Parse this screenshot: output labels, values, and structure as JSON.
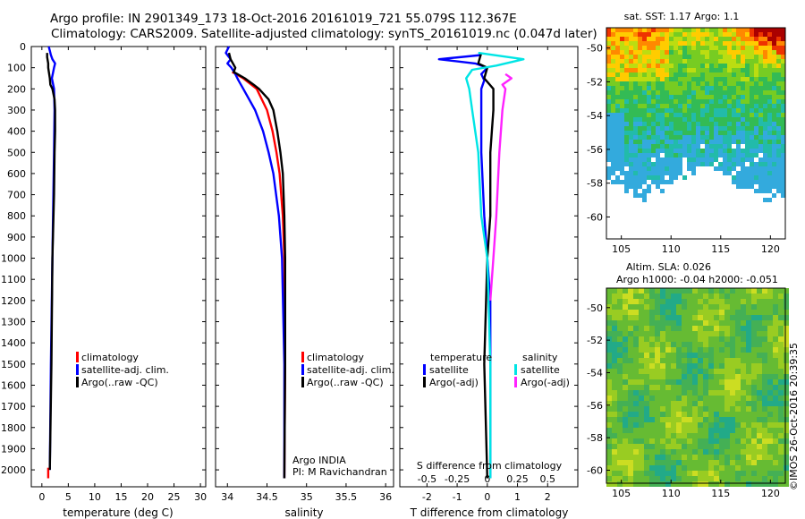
{
  "header": {
    "line1": "Argo profile: IN 2901349_173 18-Oct-2016 20161019_721 55.079S 112.367E",
    "line2": "Climatology: CARS2009. Satellite-adjusted climatology: synTS_20161019.nc (0.047d later)"
  },
  "watermark": "©IMOS 26-Oct-2016 20:39:35",
  "colors": {
    "climatology": "#ff0000",
    "satellite": "#0000ff",
    "argo": "#000000",
    "cyan": "#00e5e5",
    "magenta": "#ff22ff"
  },
  "chart_data": [
    {
      "id": "temperature",
      "type": "line",
      "xlabel": "temperature (deg C)",
      "ylabel": "",
      "xlim": [
        -2,
        31
      ],
      "ylim": [
        2080,
        0
      ],
      "xticks": [
        0,
        5,
        10,
        15,
        20,
        25,
        30
      ],
      "xtick_labels": [
        "0",
        "5",
        "10",
        "15",
        "20",
        "25",
        "30"
      ],
      "yticks": [
        0,
        100,
        200,
        300,
        400,
        500,
        600,
        700,
        800,
        900,
        1000,
        1100,
        1200,
        1300,
        1400,
        1500,
        1600,
        1700,
        1800,
        1900,
        2000
      ],
      "legend": [
        "climatology",
        "satellite-adj. clim.",
        "Argo(..raw -QC)"
      ],
      "series": [
        {
          "name": "climatology",
          "color": "#ff0000",
          "depth": [
            1990,
            2040
          ],
          "values": [
            1.2,
            1.2
          ]
        },
        {
          "name": "satellite-adj. clim.",
          "color": "#0000ff",
          "depth": [
            0,
            20,
            40,
            60,
            80,
            100,
            150,
            200,
            300,
            500,
            1000,
            1500,
            2000
          ],
          "values": [
            1.3,
            1.5,
            1.7,
            2.0,
            2.5,
            2.3,
            1.9,
            2.3,
            2.4,
            2.3,
            2.0,
            1.7,
            1.5
          ]
        },
        {
          "name": "Argo(..raw -QC)",
          "color": "#000000",
          "depth": [
            30,
            50,
            80,
            100,
            150,
            180,
            200,
            250,
            300,
            400,
            500,
            700,
            1000,
            1500,
            2000
          ],
          "values": [
            1.0,
            1.0,
            1.2,
            1.2,
            1.5,
            1.6,
            2.0,
            2.4,
            2.5,
            2.5,
            2.4,
            2.3,
            2.0,
            1.8,
            1.5
          ]
        }
      ]
    },
    {
      "id": "salinity",
      "type": "line",
      "xlabel": "salinity",
      "ylabel": "",
      "xlim": [
        33.85,
        36.1
      ],
      "ylim": [
        2080,
        0
      ],
      "xticks": [
        34,
        34.5,
        35,
        35.5,
        36
      ],
      "xtick_labels": [
        "34",
        "34.5",
        "35",
        "35.5",
        "36"
      ],
      "legend": [
        "climatology",
        "satellite-adj. clim.",
        "Argo(..raw -QC)"
      ],
      "annotations": [
        "Argo INDIA",
        "PI: M Ravichandran"
      ],
      "series": [
        {
          "name": "climatology",
          "color": "#ff0000",
          "depth": [
            120,
            150,
            200,
            300,
            400,
            500,
            600,
            800,
            1000,
            1500,
            2040
          ],
          "values": [
            34.06,
            34.2,
            34.37,
            34.5,
            34.57,
            34.62,
            34.66,
            34.7,
            34.72,
            34.73,
            34.72
          ]
        },
        {
          "name": "satellite-adj. clim.",
          "color": "#0000ff",
          "depth": [
            0,
            30,
            60,
            80,
            100,
            130,
            160,
            200,
            300,
            400,
            500,
            600,
            800,
            1000,
            1500,
            2040
          ],
          "values": [
            34.02,
            33.98,
            34.04,
            34.0,
            34.05,
            34.1,
            34.14,
            34.2,
            34.35,
            34.45,
            34.52,
            34.58,
            34.65,
            34.69,
            34.72,
            34.72
          ]
        },
        {
          "name": "Argo(..raw -QC)",
          "color": "#000000",
          "depth": [
            30,
            60,
            100,
            120,
            150,
            180,
            200,
            250,
            300,
            400,
            500,
            600,
            800,
            1000,
            1500,
            2040
          ],
          "values": [
            34.02,
            34.04,
            34.1,
            34.08,
            34.22,
            34.33,
            34.4,
            34.52,
            34.58,
            34.63,
            34.67,
            34.7,
            34.72,
            34.73,
            34.73,
            34.72
          ]
        }
      ]
    },
    {
      "id": "difference",
      "type": "line",
      "xlabel": "T difference from climatology",
      "xlabel2": "S difference from climatology",
      "xlim": [
        -2.9,
        3.0
      ],
      "ylim": [
        2080,
        0
      ],
      "xticks": [
        -2,
        -1,
        0,
        1,
        2
      ],
      "xtick_labels": [
        "-2",
        "-1",
        "0",
        "1",
        "2"
      ],
      "xticks_top": [
        -2,
        -1,
        0,
        1,
        2
      ],
      "xtick_labels_top": [
        "-0.5",
        "-0.25",
        "0",
        "0.25",
        "0.5"
      ],
      "legend_groups": [
        {
          "title": "temperature",
          "items": [
            "satellite",
            "Argo(-adj)"
          ]
        },
        {
          "title": "salinity",
          "items": [
            "satellite",
            "Argo(-adj)"
          ]
        }
      ],
      "series": [
        {
          "name": "temperature satellite",
          "color": "#0000ff",
          "depth": [
            40,
            60,
            80,
            100,
            130,
            160,
            200,
            300,
            500,
            800,
            1000,
            1200,
            1500,
            2040
          ],
          "values": [
            -0.2,
            -1.6,
            -0.4,
            0.0,
            -0.2,
            -0.1,
            -0.2,
            -0.2,
            -0.2,
            -0.1,
            0.0,
            0.1,
            0.1,
            0.1
          ]
        },
        {
          "name": "temperature Argo(-adj)",
          "color": "#000000",
          "depth": [
            30,
            80,
            100,
            150,
            200,
            300,
            500,
            800,
            1000,
            1500,
            2040
          ],
          "values": [
            -0.2,
            -0.3,
            0.0,
            -0.1,
            0.2,
            0.2,
            0.1,
            0.1,
            0.0,
            -0.1,
            0.0
          ]
        },
        {
          "name": "salinity satellite",
          "color": "#00e5e5",
          "depth": [
            30,
            60,
            90,
            110,
            150,
            200,
            300,
            500,
            800,
            1000,
            1500,
            2040
          ],
          "values": [
            -0.3,
            1.2,
            0.3,
            -0.5,
            -0.7,
            -0.6,
            -0.5,
            -0.3,
            -0.2,
            0.0,
            0.1,
            0.1
          ]
        },
        {
          "name": "salinity Argo(-adj)",
          "color": "#ff22ff",
          "depth": [
            130,
            150,
            180,
            200,
            300,
            500,
            800,
            1000,
            1200
          ],
          "values": [
            0.6,
            0.8,
            0.5,
            0.6,
            0.5,
            0.4,
            0.3,
            0.2,
            0.1
          ]
        }
      ]
    },
    {
      "id": "sst_map",
      "type": "heatmap",
      "title": "sat. SST: 1.17 Argo: 1.1",
      "xlim": [
        103.5,
        121.5
      ],
      "ylim": [
        -61.3,
        -48.8
      ],
      "xticks": [
        105,
        110,
        115,
        120
      ],
      "xtick_labels": [
        "105",
        "110",
        "115",
        "120"
      ],
      "yticks": [
        -50,
        -52,
        -54,
        -56,
        -58,
        -60
      ],
      "ytick_labels": [
        "-50",
        "-52",
        "-54",
        "-56",
        "-58",
        "-60"
      ]
    },
    {
      "id": "sla_map",
      "type": "heatmap",
      "title": "Altim. SLA: 0.026",
      "subtitle": "Argo h1000: -0.04 h2000: -0.051",
      "xlim": [
        103.5,
        121.5
      ],
      "ylim": [
        -60.8,
        -48.8
      ],
      "xticks": [
        105,
        110,
        115,
        120
      ],
      "xtick_labels": [
        "105",
        "110",
        "115",
        "120"
      ],
      "yticks": [
        -50,
        -52,
        -54,
        -56,
        -58,
        -60
      ],
      "ytick_labels": [
        "-50",
        "-52",
        "-54",
        "-56",
        "-58",
        "-60"
      ]
    }
  ]
}
